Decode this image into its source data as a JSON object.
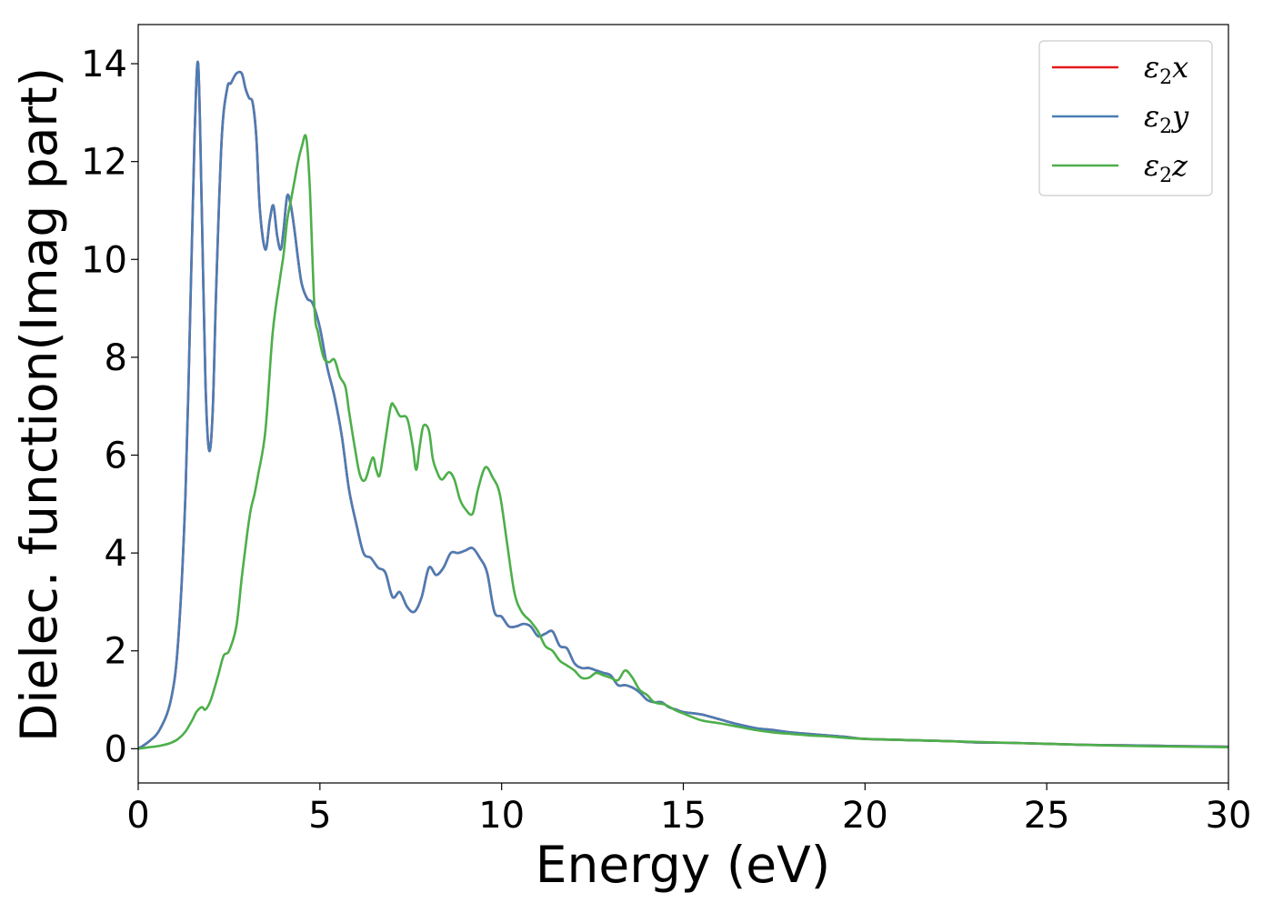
{
  "chart_data": {
    "type": "line",
    "xlabel": "Energy (eV)",
    "ylabel": "Dielec. function(Imag part)",
    "xlim": [
      0,
      30
    ],
    "ylim": [
      -0.7,
      14.8
    ],
    "xticks": [
      0,
      5,
      10,
      15,
      20,
      25,
      30
    ],
    "yticks": [
      0,
      2,
      4,
      6,
      8,
      10,
      12,
      14
    ],
    "grid": false,
    "legend_position": "top-right",
    "series": [
      {
        "name": "ε2x",
        "label_base": "ε",
        "label_sub": "2",
        "label_tail": "x",
        "color": "#e41a1c",
        "x": [
          0,
          0.3,
          0.6,
          0.9,
          1.1,
          1.3,
          1.45,
          1.55,
          1.65,
          1.75,
          1.85,
          1.95,
          2.05,
          2.15,
          2.3,
          2.45,
          2.55,
          2.7,
          2.85,
          2.95,
          3.05,
          3.15,
          3.25,
          3.35,
          3.5,
          3.62,
          3.72,
          3.82,
          3.92,
          4.0,
          4.1,
          4.2,
          4.3,
          4.4,
          4.5,
          4.65,
          4.8,
          5.0,
          5.2,
          5.4,
          5.6,
          5.8,
          6.0,
          6.2,
          6.4,
          6.6,
          6.8,
          7.0,
          7.2,
          7.4,
          7.6,
          7.8,
          8.0,
          8.2,
          8.4,
          8.6,
          8.8,
          9.0,
          9.2,
          9.4,
          9.6,
          9.8,
          10.0,
          10.2,
          10.4,
          10.6,
          10.8,
          11.0,
          11.2,
          11.4,
          11.6,
          11.8,
          12.0,
          12.2,
          12.4,
          12.6,
          12.8,
          13.0,
          13.2,
          13.4,
          13.6,
          13.8,
          14.0,
          14.2,
          14.4,
          14.6,
          14.8,
          15.0,
          15.5,
          16.0,
          16.5,
          17.0,
          17.5,
          18.0,
          18.5,
          19.0,
          19.5,
          20.0,
          21.0,
          22.0,
          22.5,
          23.0,
          24.0,
          25.0,
          26.0,
          27.0,
          28.0,
          29.0,
          30.0
        ],
        "values": [
          0.0,
          0.15,
          0.4,
          1.0,
          2.2,
          5.2,
          9.5,
          12.5,
          14.0,
          11.0,
          7.5,
          6.1,
          6.9,
          9.5,
          12.5,
          13.5,
          13.6,
          13.8,
          13.8,
          13.5,
          13.3,
          13.2,
          12.5,
          11.0,
          10.2,
          10.8,
          11.1,
          10.5,
          10.2,
          10.6,
          11.3,
          11.1,
          10.6,
          10.0,
          9.5,
          9.2,
          9.1,
          8.6,
          7.8,
          7.2,
          6.4,
          5.3,
          4.6,
          4.0,
          3.9,
          3.7,
          3.6,
          3.1,
          3.2,
          2.9,
          2.8,
          3.1,
          3.7,
          3.55,
          3.7,
          4.0,
          4.0,
          4.05,
          4.1,
          3.9,
          3.6,
          2.8,
          2.7,
          2.5,
          2.5,
          2.55,
          2.5,
          2.3,
          2.35,
          2.4,
          2.1,
          2.05,
          1.75,
          1.65,
          1.65,
          1.6,
          1.55,
          1.5,
          1.3,
          1.3,
          1.25,
          1.15,
          1.0,
          0.95,
          0.95,
          0.85,
          0.8,
          0.75,
          0.7,
          0.6,
          0.5,
          0.42,
          0.38,
          0.33,
          0.3,
          0.27,
          0.24,
          0.2,
          0.18,
          0.16,
          0.15,
          0.13,
          0.12,
          0.1,
          0.08,
          0.07,
          0.06,
          0.05,
          0.04
        ]
      },
      {
        "name": "ε2y",
        "label_base": "ε",
        "label_sub": "2",
        "label_tail": "y",
        "color": "#4a7db5",
        "x": [
          0,
          0.3,
          0.6,
          0.9,
          1.1,
          1.3,
          1.45,
          1.55,
          1.65,
          1.75,
          1.85,
          1.95,
          2.05,
          2.15,
          2.3,
          2.45,
          2.55,
          2.7,
          2.85,
          2.95,
          3.05,
          3.15,
          3.25,
          3.35,
          3.5,
          3.62,
          3.72,
          3.82,
          3.92,
          4.0,
          4.1,
          4.2,
          4.3,
          4.4,
          4.5,
          4.65,
          4.8,
          5.0,
          5.2,
          5.4,
          5.6,
          5.8,
          6.0,
          6.2,
          6.4,
          6.6,
          6.8,
          7.0,
          7.2,
          7.4,
          7.6,
          7.8,
          8.0,
          8.2,
          8.4,
          8.6,
          8.8,
          9.0,
          9.2,
          9.4,
          9.6,
          9.8,
          10.0,
          10.2,
          10.4,
          10.6,
          10.8,
          11.0,
          11.2,
          11.4,
          11.6,
          11.8,
          12.0,
          12.2,
          12.4,
          12.6,
          12.8,
          13.0,
          13.2,
          13.4,
          13.6,
          13.8,
          14.0,
          14.2,
          14.4,
          14.6,
          14.8,
          15.0,
          15.5,
          16.0,
          16.5,
          17.0,
          17.5,
          18.0,
          18.5,
          19.0,
          19.5,
          20.0,
          21.0,
          22.0,
          22.5,
          23.0,
          24.0,
          25.0,
          26.0,
          27.0,
          28.0,
          29.0,
          30.0
        ],
        "values": [
          0.0,
          0.15,
          0.4,
          1.0,
          2.2,
          5.2,
          9.5,
          12.5,
          14.0,
          11.0,
          7.5,
          6.1,
          6.9,
          9.5,
          12.5,
          13.5,
          13.6,
          13.8,
          13.8,
          13.5,
          13.3,
          13.2,
          12.5,
          11.0,
          10.2,
          10.8,
          11.1,
          10.5,
          10.2,
          10.6,
          11.3,
          11.1,
          10.6,
          10.0,
          9.5,
          9.2,
          9.1,
          8.6,
          7.8,
          7.2,
          6.4,
          5.3,
          4.6,
          4.0,
          3.9,
          3.7,
          3.6,
          3.1,
          3.2,
          2.9,
          2.8,
          3.1,
          3.7,
          3.55,
          3.7,
          4.0,
          4.0,
          4.05,
          4.1,
          3.9,
          3.6,
          2.8,
          2.7,
          2.5,
          2.5,
          2.55,
          2.5,
          2.3,
          2.35,
          2.4,
          2.1,
          2.05,
          1.75,
          1.65,
          1.65,
          1.6,
          1.55,
          1.5,
          1.3,
          1.3,
          1.25,
          1.15,
          1.0,
          0.95,
          0.95,
          0.85,
          0.8,
          0.75,
          0.7,
          0.6,
          0.5,
          0.42,
          0.38,
          0.33,
          0.3,
          0.27,
          0.24,
          0.2,
          0.18,
          0.16,
          0.15,
          0.13,
          0.12,
          0.1,
          0.08,
          0.07,
          0.06,
          0.05,
          0.04
        ]
      },
      {
        "name": "ε2z",
        "label_base": "ε",
        "label_sub": "2",
        "label_tail": "z",
        "color": "#4daf4a",
        "x": [
          0,
          0.3,
          0.6,
          0.9,
          1.1,
          1.3,
          1.5,
          1.6,
          1.75,
          1.85,
          2.0,
          2.2,
          2.35,
          2.5,
          2.7,
          2.85,
          3.0,
          3.1,
          3.2,
          3.3,
          3.5,
          3.7,
          3.9,
          4.0,
          4.1,
          4.2,
          4.3,
          4.4,
          4.5,
          4.62,
          4.72,
          4.85,
          4.95,
          5.1,
          5.25,
          5.4,
          5.55,
          5.7,
          5.8,
          5.95,
          6.1,
          6.25,
          6.45,
          6.55,
          6.65,
          6.8,
          6.95,
          7.05,
          7.2,
          7.4,
          7.55,
          7.65,
          7.75,
          7.85,
          8.0,
          8.1,
          8.2,
          8.35,
          8.55,
          8.7,
          8.85,
          9.0,
          9.2,
          9.35,
          9.55,
          9.75,
          9.95,
          10.15,
          10.35,
          10.55,
          10.8,
          11.0,
          11.2,
          11.4,
          11.6,
          11.8,
          12.0,
          12.2,
          12.4,
          12.6,
          12.8,
          13.0,
          13.2,
          13.4,
          13.6,
          13.8,
          14.0,
          14.2,
          14.5,
          14.8,
          15.0,
          15.5,
          16.0,
          16.5,
          17.0,
          17.5,
          18.0,
          18.5,
          19.0,
          19.5,
          20.0,
          21.0,
          22.0,
          23.0,
          24.0,
          25.0,
          26.0,
          27.0,
          28.0,
          29.0,
          30.0
        ],
        "values": [
          0.0,
          0.03,
          0.06,
          0.12,
          0.2,
          0.35,
          0.6,
          0.75,
          0.85,
          0.8,
          1.0,
          1.5,
          1.9,
          2.0,
          2.5,
          3.5,
          4.4,
          4.9,
          5.2,
          5.6,
          6.5,
          8.5,
          9.6,
          10.1,
          10.8,
          11.2,
          11.6,
          12.0,
          12.3,
          12.5,
          11.5,
          9.0,
          8.5,
          8.0,
          7.9,
          7.95,
          7.6,
          7.4,
          6.9,
          6.2,
          5.6,
          5.5,
          5.95,
          5.7,
          5.6,
          6.3,
          7.0,
          7.0,
          6.8,
          6.75,
          6.2,
          5.7,
          6.2,
          6.6,
          6.5,
          5.95,
          5.7,
          5.5,
          5.65,
          5.5,
          5.1,
          4.9,
          4.8,
          5.3,
          5.75,
          5.55,
          5.2,
          4.2,
          3.2,
          2.8,
          2.6,
          2.4,
          2.1,
          2.0,
          1.8,
          1.7,
          1.6,
          1.45,
          1.45,
          1.55,
          1.5,
          1.45,
          1.4,
          1.6,
          1.45,
          1.2,
          1.1,
          0.95,
          0.9,
          0.78,
          0.72,
          0.58,
          0.52,
          0.45,
          0.38,
          0.33,
          0.3,
          0.27,
          0.25,
          0.22,
          0.2,
          0.18,
          0.16,
          0.14,
          0.12,
          0.1,
          0.08,
          0.06,
          0.05,
          0.04,
          0.03
        ]
      }
    ]
  }
}
